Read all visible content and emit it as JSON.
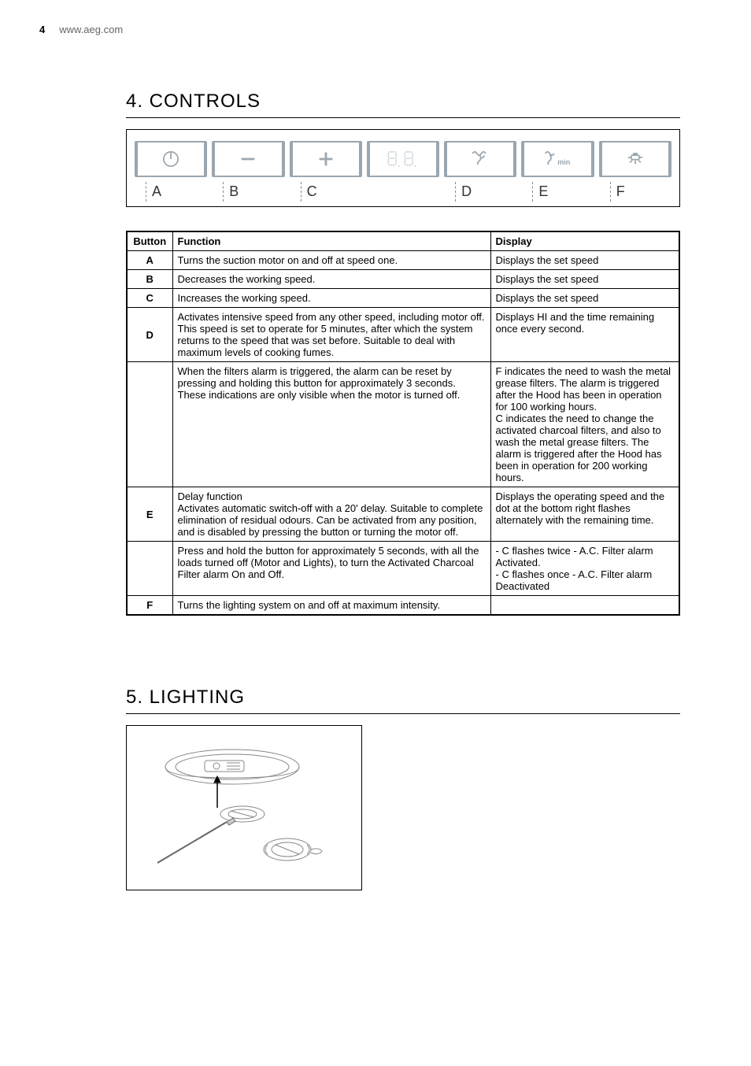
{
  "header": {
    "page_number": "4",
    "url": "www.aeg.com"
  },
  "sections": {
    "controls": {
      "heading": "4.  CONTROLS",
      "buttons": [
        {
          "id": "A",
          "icon": "power-icon",
          "label": "A"
        },
        {
          "id": "B",
          "icon": "minus-icon",
          "label": "B"
        },
        {
          "id": "C",
          "icon": "plus-icon",
          "label": "C"
        },
        {
          "id": "DISPLAY",
          "icon": "seven-seg-display",
          "label": ""
        },
        {
          "id": "D",
          "icon": "intensive-icon",
          "label": "D"
        },
        {
          "id": "E",
          "icon": "delay-icon",
          "label": "E"
        },
        {
          "id": "F",
          "icon": "light-icon",
          "label": "F"
        }
      ],
      "table": {
        "headers": [
          "Button",
          "Function",
          "Display"
        ],
        "rows": [
          {
            "button": "A",
            "function": "Turns the suction motor on and off at speed one.",
            "display": "Displays the set speed"
          },
          {
            "button": "B",
            "function": "Decreases the working speed.",
            "display": "Displays the set speed"
          },
          {
            "button": "C",
            "function": "Increases the working speed.",
            "display": "Displays the set speed"
          },
          {
            "button": "D",
            "function": "Activates intensive speed from any other speed, including motor off. This speed is set to operate for 5 minutes, after which the system returns to the speed that was set before. Suitable to deal with maximum levels of cooking fumes.",
            "display": "Displays HI and the time remaining once every second."
          },
          {
            "button": "",
            "function": "When the filters alarm is triggered, the alarm can be reset by pressing and holding this button for approximately 3 seconds. These indications are only visible when the motor is turned off.",
            "display": "F  indicates the need to wash the metal grease filters. The alarm is triggered after the Hood has been in operation for 100 working hours.\nC  indicates the need to change the activated charcoal filters, and also to wash the metal grease filters. The alarm is triggered after the Hood has been in operation for 200 working hours."
          },
          {
            "button": "E",
            "function": "Delay function\nActivates automatic switch-off with a 20' delay. Suitable to complete elimination of residual odours. Can be activated from any position, and is disabled by pressing the button or turning the motor off.",
            "display": "Displays the operating speed and the dot at the bottom right flashes alternately with the remaining time."
          },
          {
            "button": "",
            "function": "Press and hold the button for approximately 5 seconds, with all the loads turned off (Motor and Lights), to turn the Activated Charcoal Filter alarm On and Off.",
            "display": "- C flashes twice - A.C. Filter alarm Activated.\n- C flashes once - A.C. Filter alarm Deactivated"
          },
          {
            "button": "F",
            "function": "Turns the lighting system on and off at maximum intensity.",
            "display": ""
          }
        ]
      }
    },
    "lighting": {
      "heading": "5.  LIGHTING"
    }
  },
  "colors": {
    "icon_stroke": "#9aa6af",
    "display_stroke": "#d0d6da",
    "border": "#000000",
    "text": "#000000",
    "muted": "#666666"
  }
}
